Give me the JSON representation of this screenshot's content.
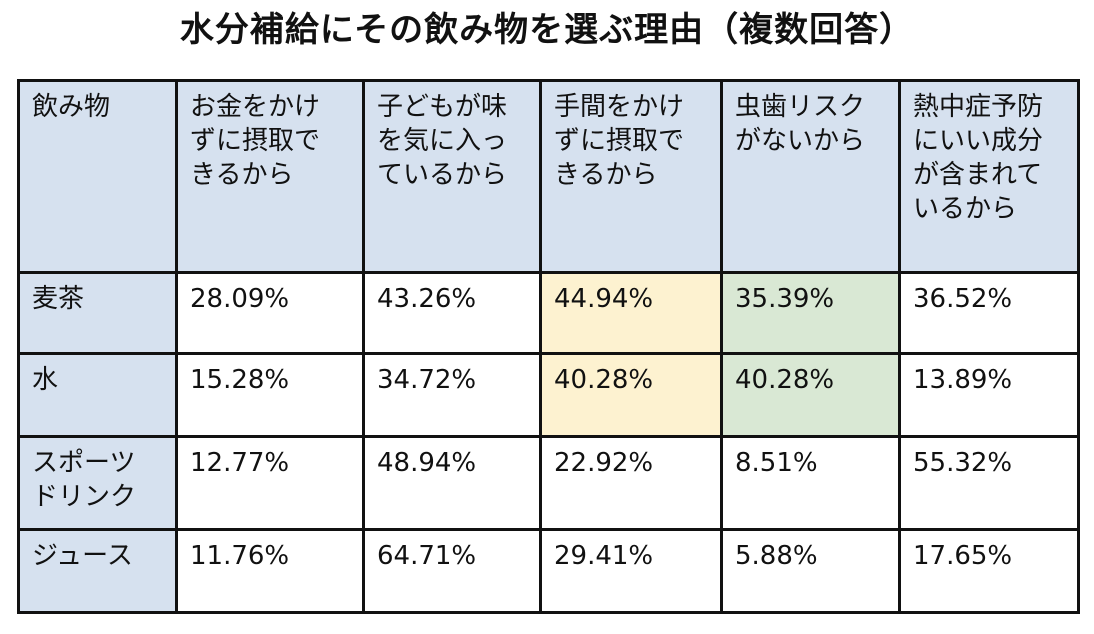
{
  "title": "水分補給にその飲み物を選ぶ理由（複数回答）",
  "colors": {
    "header_bg": "#d6e1ef",
    "highlight_yellow": "#fdf2d0",
    "highlight_green": "#d9e8d4",
    "border": "#111111"
  },
  "chart_data": {
    "type": "table",
    "title": "水分補給にその飲み物を選ぶ理由（複数回答）",
    "columns": [
      "飲み物",
      "お金をかけ\nずに摂取で\nきるから",
      "子どもが味\nを気に入っ\nているから",
      "手間をかけ\nずに摂取で\nきるから",
      "虫歯リスク\nがないから",
      "熱中症予防\nにいい成分\nが含まれて\nいるから"
    ],
    "rows": [
      {
        "label": "麦茶",
        "values": [
          "28.09%",
          "43.26%",
          "44.94%",
          "35.39%",
          "36.52%"
        ]
      },
      {
        "label": "水",
        "values": [
          "15.28%",
          "34.72%",
          "40.28%",
          "40.28%",
          "13.89%"
        ]
      },
      {
        "label": "スポーツ\nドリンク",
        "values": [
          "12.77%",
          "48.94%",
          "22.92%",
          "8.51%",
          "55.32%"
        ]
      },
      {
        "label": "ジュース",
        "values": [
          "11.76%",
          "64.71%",
          "29.41%",
          "5.88%",
          "17.65%"
        ]
      }
    ],
    "highlighted_cells": [
      {
        "row": 0,
        "col": 2,
        "color": "yellow",
        "bold": true
      },
      {
        "row": 0,
        "col": 3,
        "color": "green",
        "bold": true
      },
      {
        "row": 1,
        "col": 2,
        "color": "yellow",
        "bold": true
      },
      {
        "row": 1,
        "col": 3,
        "color": "green",
        "bold": true
      }
    ]
  }
}
